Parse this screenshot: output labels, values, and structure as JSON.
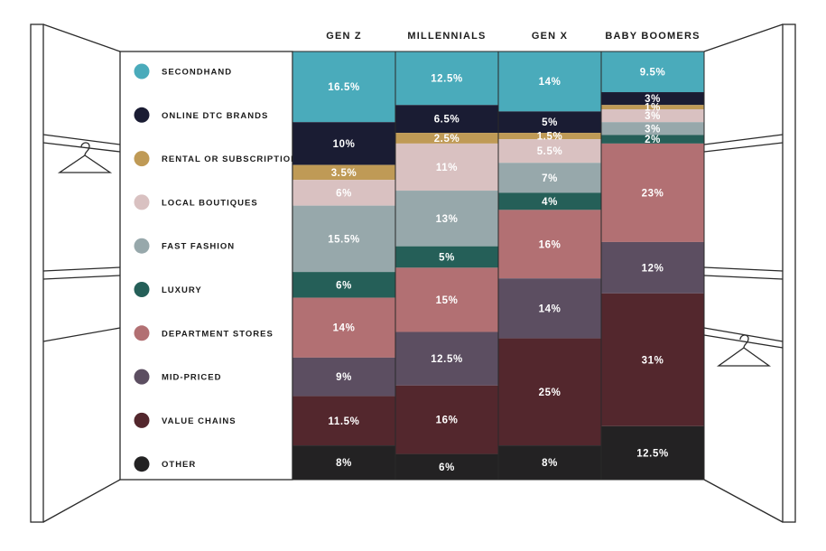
{
  "chart_data": {
    "type": "bar",
    "stacked": true,
    "categories": [
      "GEN Z",
      "MILLENNIALS",
      "GEN X",
      "BABY BOOMERS"
    ],
    "series": [
      {
        "name": "SECONDHAND",
        "color": "#4aabbb",
        "label_color": "#ffffff",
        "values": [
          16.5,
          12.5,
          14,
          9.5
        ],
        "labels": [
          "16.5%",
          "12.5%",
          "14%",
          "9.5%"
        ]
      },
      {
        "name": "ONLINE DTC BRANDS",
        "color": "#1a1c33",
        "label_color": "#ffffff",
        "values": [
          10,
          6.5,
          5,
          3
        ],
        "labels": [
          "10%",
          "6.5%",
          "5%",
          "3%"
        ]
      },
      {
        "name": "RENTAL OR SUBSCRIPTION",
        "color": "#bf9a56",
        "label_color": "#ffffff",
        "values": [
          3.5,
          2.5,
          1.5,
          1
        ],
        "labels": [
          "3.5%",
          "2.5%",
          "1.5%",
          "1%"
        ]
      },
      {
        "name": "LOCAL BOUTIQUES",
        "color": "#d9c1c1",
        "label_color": "#ffffff",
        "values": [
          6,
          11,
          5.5,
          3
        ],
        "labels": [
          "6%",
          "11%",
          "5.5%",
          "3%"
        ]
      },
      {
        "name": "FAST FASHION",
        "color": "#97a8ab",
        "label_color": "#ffffff",
        "values": [
          15.5,
          13,
          7,
          3
        ],
        "labels": [
          "15.5%",
          "13%",
          "7%",
          "3%"
        ]
      },
      {
        "name": "LUXURY",
        "color": "#255f58",
        "label_color": "#ffffff",
        "values": [
          6,
          5,
          4,
          2
        ],
        "labels": [
          "6%",
          "5%",
          "4%",
          "2%"
        ]
      },
      {
        "name": "DEPARTMENT STORES",
        "color": "#b27073",
        "label_color": "#ffffff",
        "values": [
          14,
          15,
          16,
          23
        ],
        "labels": [
          "14%",
          "15%",
          "16%",
          "23%"
        ]
      },
      {
        "name": "MID-PRICED",
        "color": "#5c4e61",
        "label_color": "#ffffff",
        "values": [
          9,
          12.5,
          14,
          12
        ],
        "labels": [
          "9%",
          "12.5%",
          "14%",
          "12%"
        ]
      },
      {
        "name": "VALUE CHAINS",
        "color": "#53272d",
        "label_color": "#ffffff",
        "values": [
          11.5,
          16,
          25,
          31
        ],
        "labels": [
          "11.5%",
          "16%",
          "25%",
          "31%"
        ]
      },
      {
        "name": "OTHER",
        "color": "#232223",
        "label_color": "#ffffff",
        "values": [
          8,
          6,
          8,
          12.5
        ],
        "labels": [
          "8%",
          "6%",
          "8%",
          "12.5%"
        ]
      }
    ],
    "legend": "left",
    "grid": false
  }
}
